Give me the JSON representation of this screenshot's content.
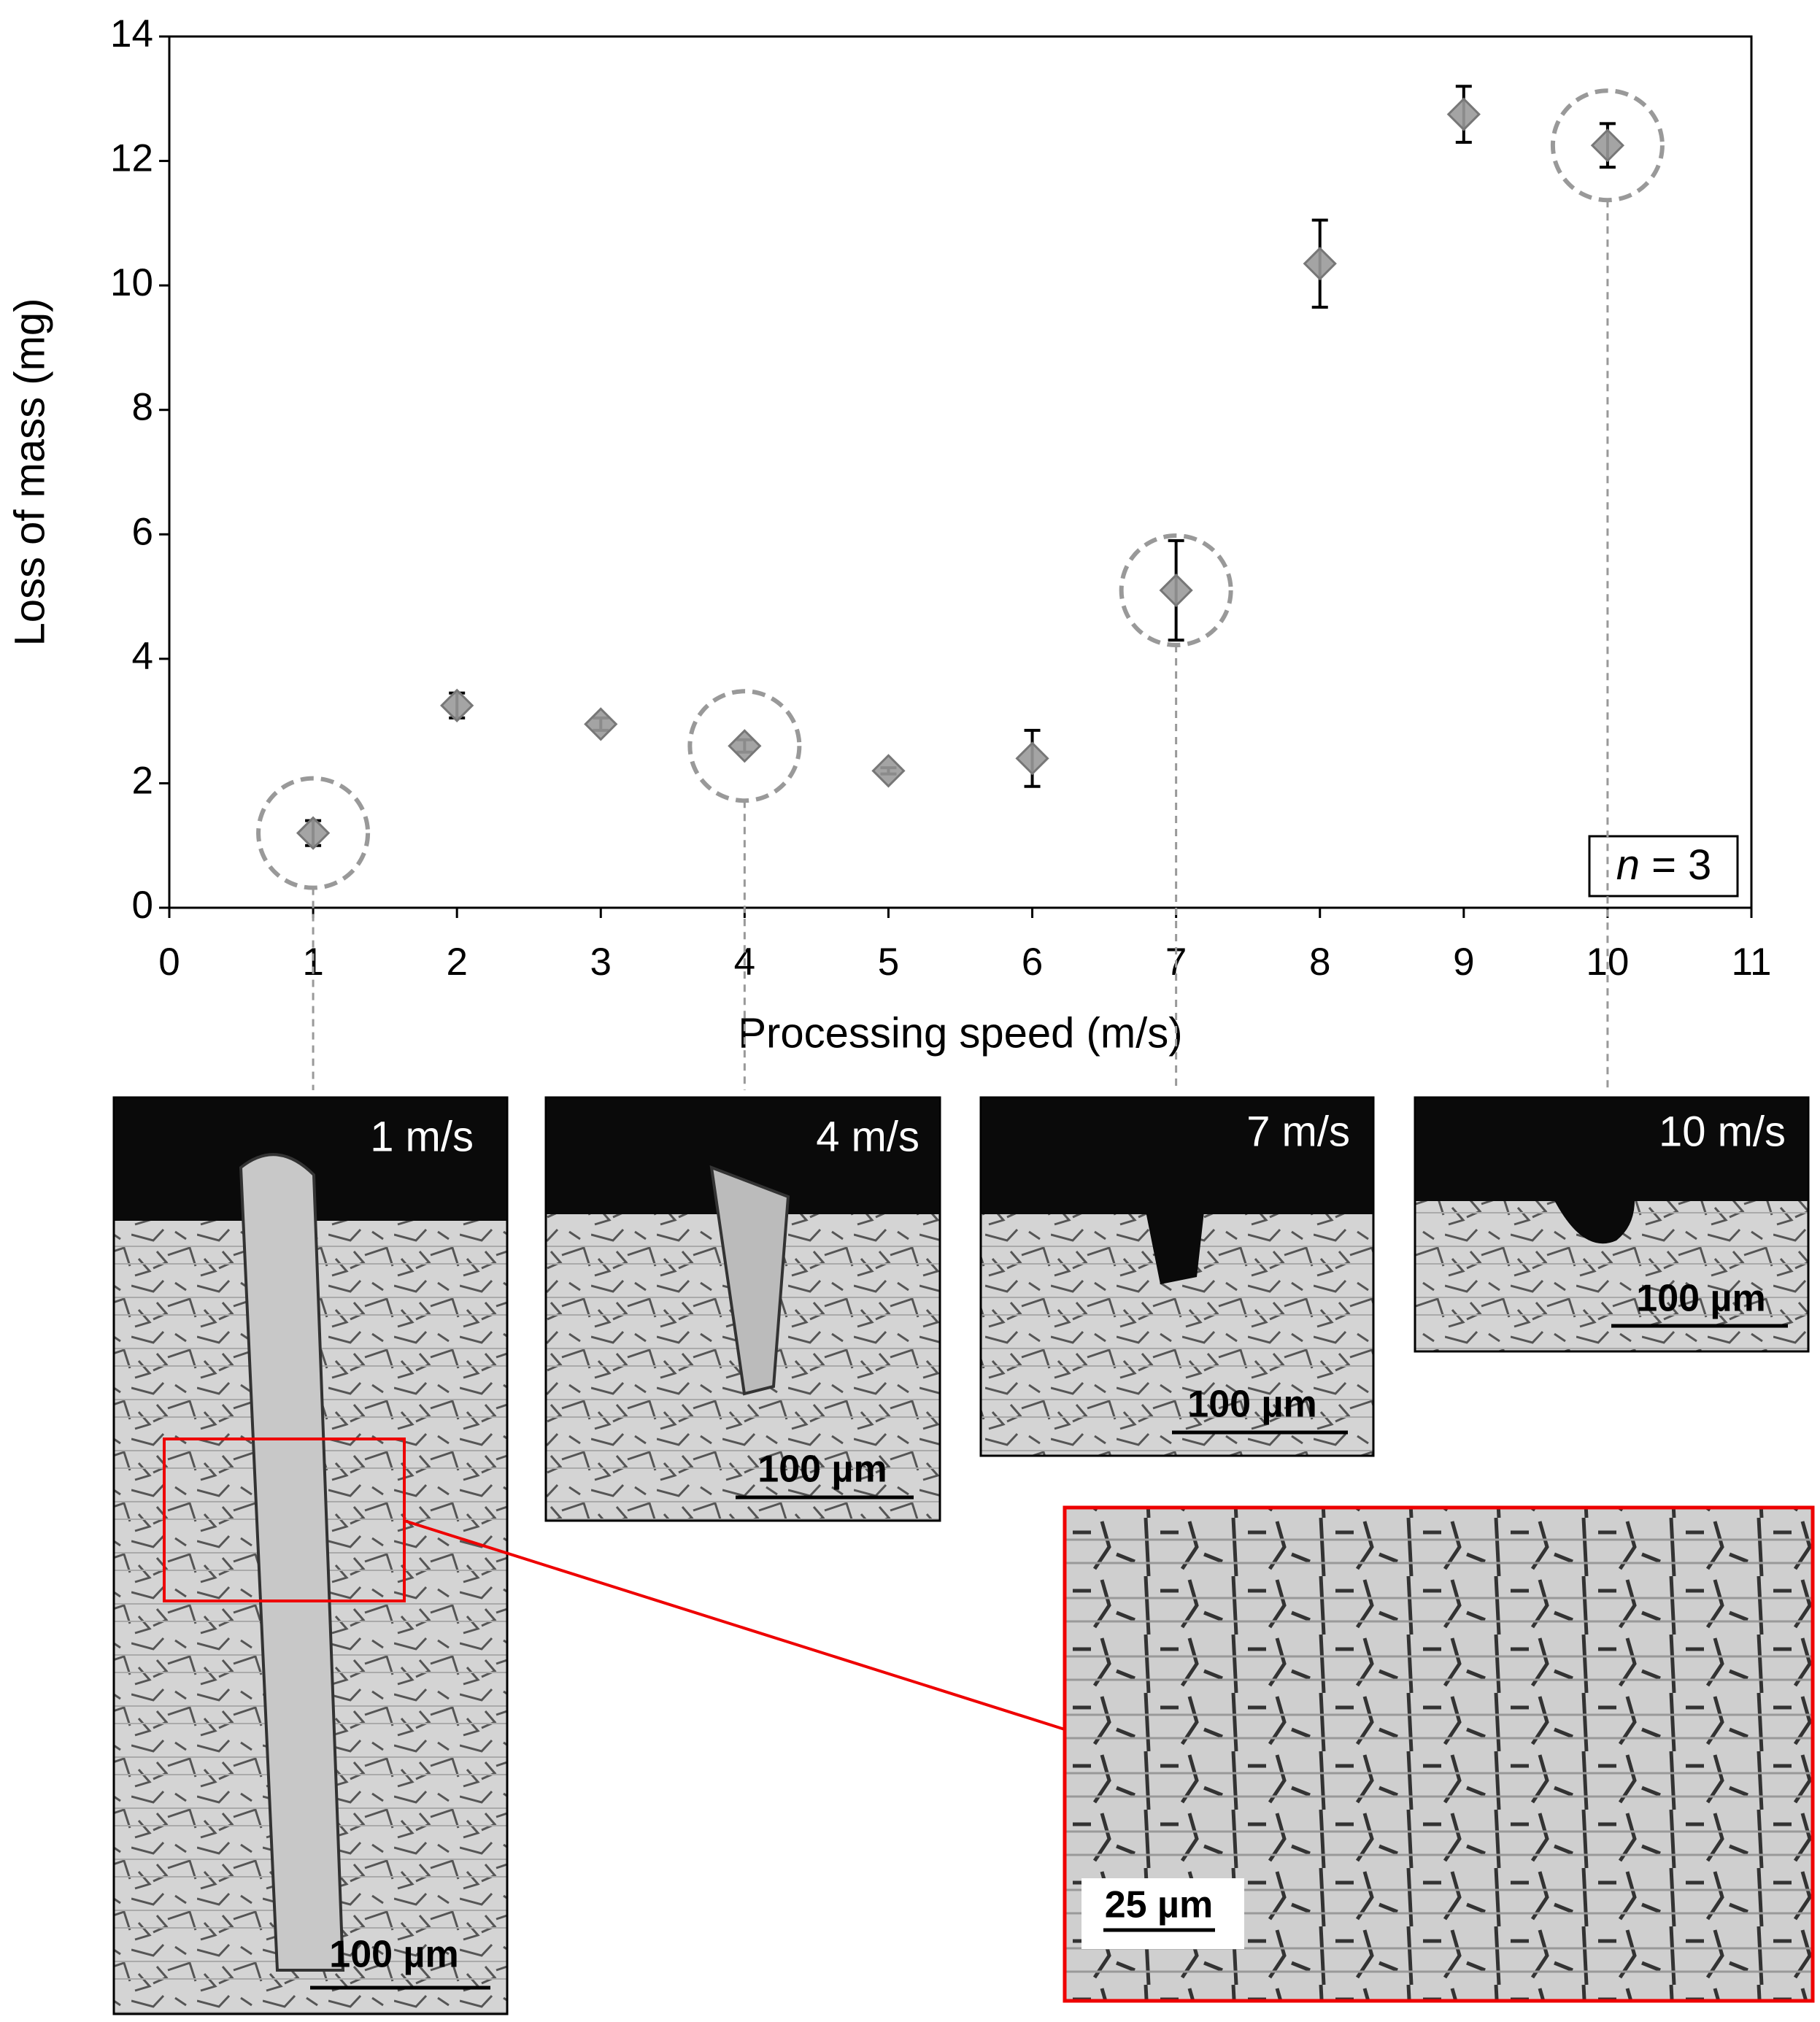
{
  "chart_data": {
    "type": "scatter",
    "x_label": "Processing speed (m/s)",
    "y_label": "Loss of mass (mg)",
    "x": [
      1,
      2,
      3,
      4,
      5,
      6,
      7,
      8,
      9,
      10
    ],
    "values": [
      1.2,
      3.25,
      2.95,
      2.6,
      2.2,
      2.4,
      5.1,
      10.35,
      12.75,
      12.25
    ],
    "errors": [
      0.2,
      0.2,
      0.1,
      0.1,
      0.05,
      0.45,
      0.8,
      0.7,
      0.45,
      0.35
    ],
    "color": "#9a9a9a",
    "xlim": [
      0,
      11
    ],
    "xticks": [
      0,
      1,
      2,
      3,
      4,
      5,
      6,
      7,
      8,
      9,
      10,
      11
    ],
    "ylim": [
      0,
      14
    ],
    "yticks": [
      0,
      2,
      4,
      6,
      8,
      10,
      12,
      14
    ],
    "highlighted_x": [
      1,
      4,
      7,
      10
    ],
    "annotation": {
      "italic": "n",
      "text": " = 3"
    }
  },
  "panels": [
    {
      "label": "1 m/s",
      "scale_bar": "100 µm"
    },
    {
      "label": "4 m/s",
      "scale_bar": "100 µm"
    },
    {
      "label": "7 m/s",
      "scale_bar": "100 µm"
    },
    {
      "label": "10 m/s",
      "scale_bar": "100 µm"
    },
    {
      "scale_bar": "25 µm"
    }
  ]
}
